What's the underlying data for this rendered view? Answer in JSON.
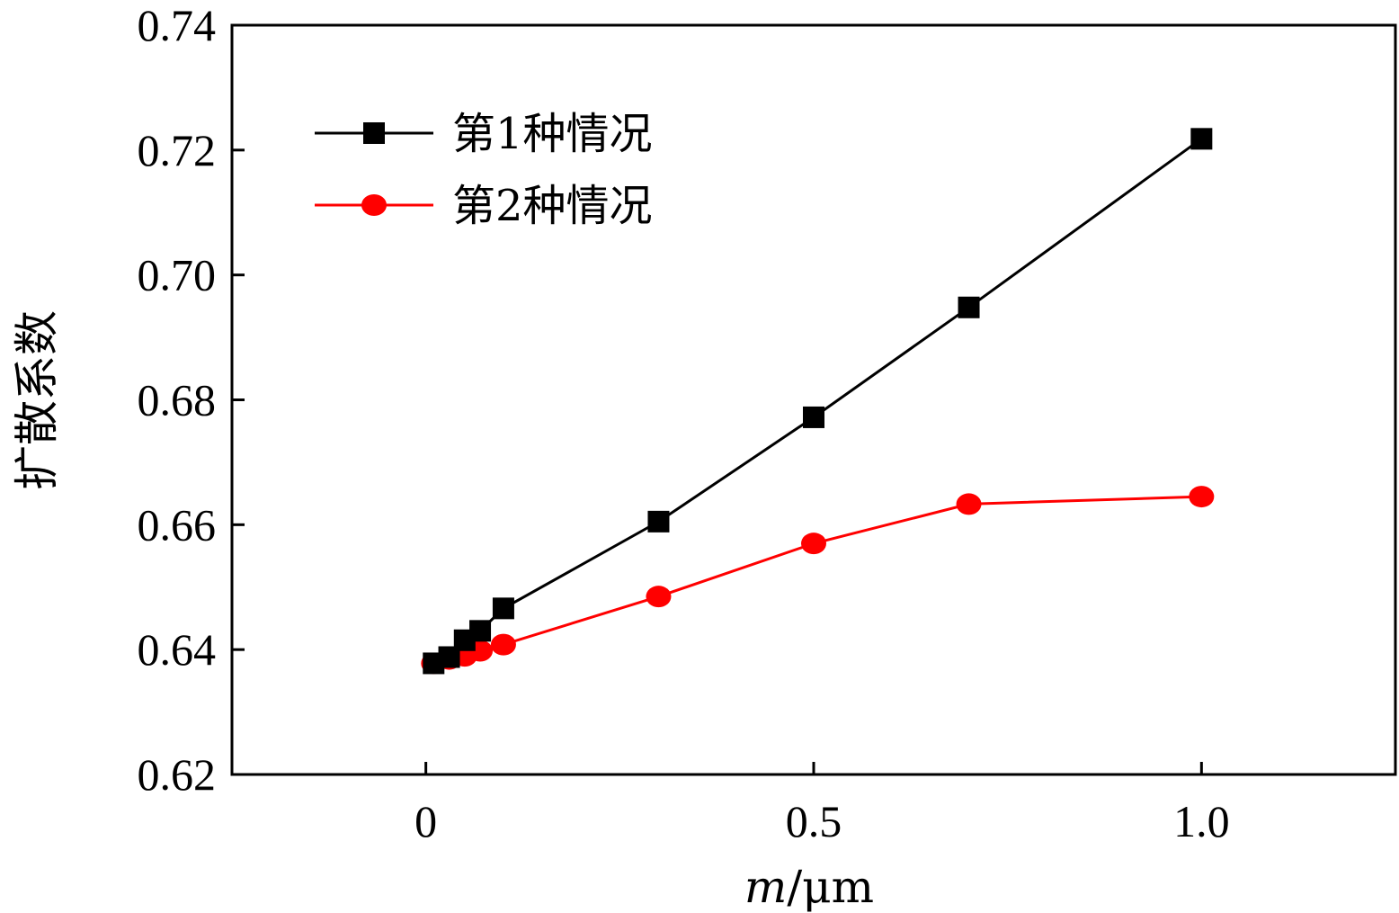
{
  "chart_data": {
    "type": "line",
    "title": "",
    "xlabel_italic": "m",
    "xlabel_unit": "/μm",
    "ylabel": "扩散系数",
    "xlim": [
      -0.25,
      1.25
    ],
    "ylim": [
      0.62,
      0.74
    ],
    "xticks": [
      0,
      0.5,
      1.0
    ],
    "xtick_labels": [
      "0",
      "0.5",
      "1.0"
    ],
    "yticks": [
      0.62,
      0.64,
      0.66,
      0.68,
      0.7,
      0.72,
      0.74
    ],
    "ytick_labels": [
      "0.62",
      "0.64",
      "0.66",
      "0.68",
      "0.70",
      "0.72",
      "0.74"
    ],
    "legend_position": "top-left",
    "series": [
      {
        "name": "第1种情况",
        "color": "#000000",
        "marker": "square",
        "x": [
          0.01,
          0.03,
          0.05,
          0.07,
          0.1,
          0.3,
          0.5,
          0.7,
          1.0
        ],
        "y": [
          0.6378,
          0.6388,
          0.6415,
          0.643,
          0.6466,
          0.6605,
          0.6772,
          0.6948,
          0.7218
        ]
      },
      {
        "name": "第2种情况",
        "color": "#ff0000",
        "marker": "circle",
        "x": [
          0.01,
          0.03,
          0.05,
          0.07,
          0.1,
          0.3,
          0.5,
          0.7,
          1.0
        ],
        "y": [
          0.6378,
          0.6385,
          0.639,
          0.6398,
          0.6408,
          0.6485,
          0.657,
          0.6633,
          0.6645
        ]
      }
    ]
  }
}
